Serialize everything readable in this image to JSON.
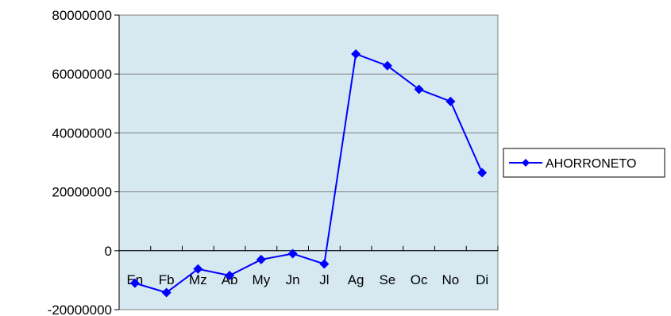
{
  "chart_data": {
    "type": "line",
    "title": "",
    "xlabel": "",
    "ylabel": "",
    "categories": [
      "En",
      "Fb",
      "Mz",
      "Ab",
      "My",
      "Jn",
      "Jl",
      "Ag",
      "Se",
      "Oc",
      "No",
      "Di"
    ],
    "series": [
      {
        "name": "AHORRONETO",
        "color": "#0000FF",
        "marker": "diamond",
        "values": [
          -11000000,
          -14200000,
          -6200000,
          -8400000,
          -3000000,
          -1000000,
          -4500000,
          66800000,
          62800000,
          54800000,
          50700000,
          26500000
        ]
      }
    ],
    "ylim": [
      -20000000,
      80000000
    ],
    "yticks": [
      "80000000",
      "60000000",
      "40000000",
      "20000000",
      "0",
      "-20000000"
    ],
    "grid": true,
    "legend_position": "right",
    "plot_background": "#D6E9F1",
    "gridline_color": "#808080"
  }
}
